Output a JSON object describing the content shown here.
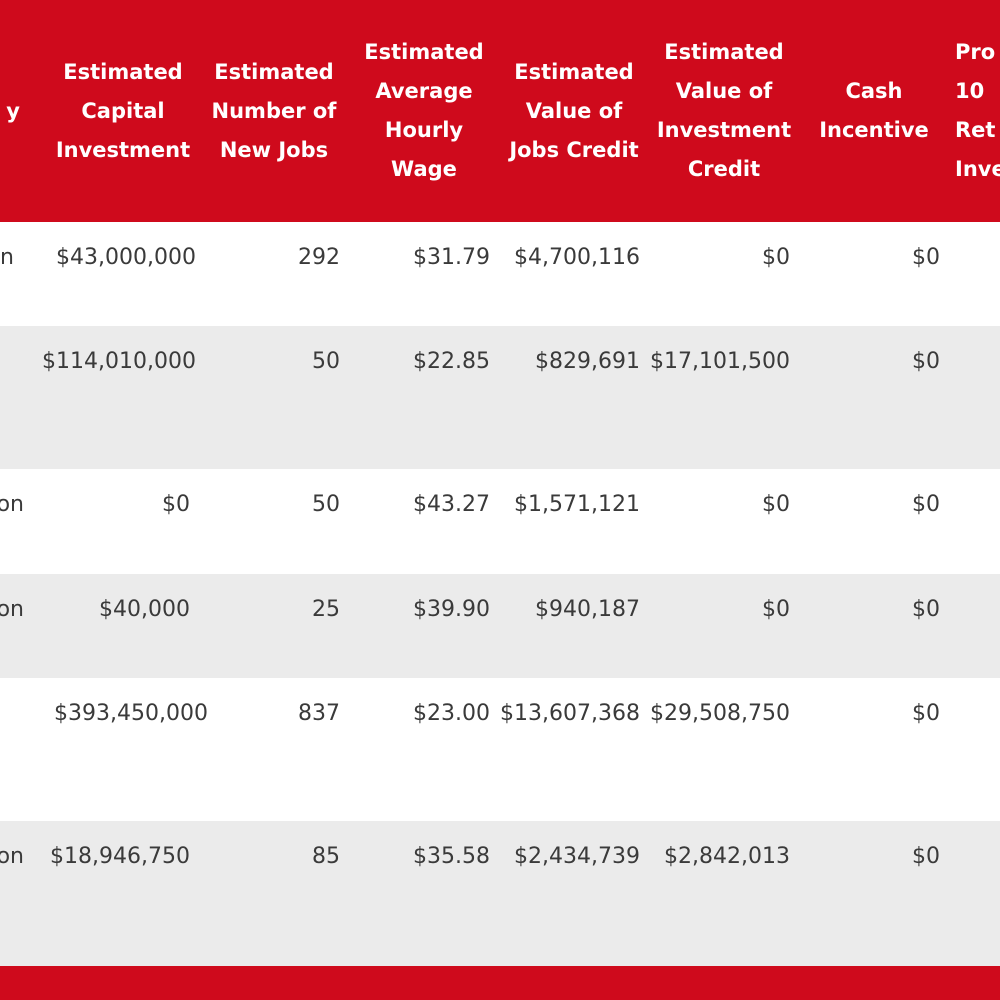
{
  "table": {
    "headers": [
      {
        "key": "col0",
        "lines": [
          "y"
        ]
      },
      {
        "key": "capital",
        "lines": [
          "Estimated",
          "Capital",
          "Investment"
        ]
      },
      {
        "key": "jobs",
        "lines": [
          "Estimated",
          "Number of",
          "New Jobs"
        ]
      },
      {
        "key": "wage",
        "lines": [
          "Estimated",
          "Average",
          "Hourly",
          "Wage"
        ]
      },
      {
        "key": "jobs_credit",
        "lines": [
          "Estimated",
          "Value of",
          "Jobs Credit"
        ]
      },
      {
        "key": "invest_credit",
        "lines": [
          "Estimated",
          "Value of",
          "Investment",
          "Credit"
        ]
      },
      {
        "key": "cash",
        "lines": [
          "Cash",
          "Incentive"
        ]
      },
      {
        "key": "col7",
        "lines": [
          "Pro",
          "10",
          "Ret",
          "Inve"
        ]
      }
    ],
    "rows": [
      {
        "col0": "n",
        "capital": "$43,000,000",
        "jobs": "292",
        "wage": "$31.79",
        "jobs_credit": "$4,700,116",
        "invest_credit": "$0",
        "cash": "$0"
      },
      {
        "col0": "",
        "capital": "$114,010,000",
        "jobs": "50",
        "wage": "$22.85",
        "jobs_credit": "$829,691",
        "invest_credit": "$17,101,500",
        "cash": "$0"
      },
      {
        "col0": "on",
        "capital": "$0",
        "jobs": "50",
        "wage": "$43.27",
        "jobs_credit": "$1,571,121",
        "invest_credit": "$0",
        "cash": "$0"
      },
      {
        "col0": "on",
        "capital": "$40,000",
        "jobs": "25",
        "wage": "$39.90",
        "jobs_credit": "$940,187",
        "invest_credit": "$0",
        "cash": "$0"
      },
      {
        "col0": "",
        "capital": "$393,450,000",
        "jobs": "837",
        "wage": "$23.00",
        "jobs_credit": "$13,607,368",
        "invest_credit": "$29,508,750",
        "cash": "$0"
      },
      {
        "col0": "on",
        "capital": "$18,946,750",
        "jobs": "85",
        "wage": "$35.58",
        "jobs_credit": "$2,434,739",
        "invest_credit": "$2,842,013",
        "cash": "$0"
      }
    ]
  },
  "colors": {
    "header_bg": "#cf0a1c",
    "header_text": "#ffffff",
    "row_alt_bg": "#ebebeb",
    "body_text": "#3a3a3a"
  }
}
